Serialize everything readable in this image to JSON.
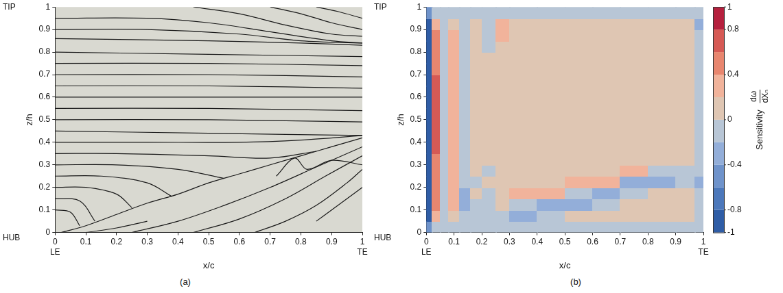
{
  "chart_data": [
    {
      "type": "line",
      "caption": "(a)",
      "x_label": "x/c",
      "y_label": "z/h",
      "xlim": [
        0,
        1
      ],
      "ylim": [
        0,
        1
      ],
      "xticks": [
        0,
        0.1,
        0.2,
        0.3,
        0.4,
        0.5,
        0.6,
        0.7,
        0.8,
        0.9,
        1
      ],
      "yticks": [
        0,
        0.1,
        0.2,
        0.3,
        0.4,
        0.5,
        0.6,
        0.7,
        0.8,
        0.9,
        1
      ],
      "grid": false,
      "color": "#1a1a1a",
      "annotations": [
        {
          "text": "TIP",
          "axis": "y",
          "value": 1
        },
        {
          "text": "HUB",
          "axis": "y",
          "value": 0
        },
        {
          "text": "LE",
          "axis": "x",
          "value": 0
        },
        {
          "text": "TE",
          "axis": "x",
          "value": 1
        }
      ],
      "series": [
        {
          "x": [
            0.02,
            0.1,
            0.2,
            0.3,
            0.4,
            0.5,
            0.6,
            0.7,
            0.8,
            0.9,
            1.0
          ],
          "y": [
            0,
            0.03,
            0.08,
            0.13,
            0.17,
            0.22,
            0.26,
            0.3,
            0.34,
            0.38,
            0.42
          ]
        },
        {
          "x": [
            0,
            0.5,
            1
          ],
          "y": [
            0.45,
            0.44,
            0.43
          ]
        },
        {
          "x": [
            0,
            0.5,
            1
          ],
          "y": [
            0.5,
            0.5,
            0.49
          ]
        },
        {
          "x": [
            0,
            0.5,
            1
          ],
          "y": [
            0.55,
            0.55,
            0.54
          ]
        },
        {
          "x": [
            0,
            0.5,
            1
          ],
          "y": [
            0.6,
            0.6,
            0.6
          ]
        },
        {
          "x": [
            0,
            0.5,
            1
          ],
          "y": [
            0.65,
            0.65,
            0.64
          ]
        },
        {
          "x": [
            0,
            0.5,
            1
          ],
          "y": [
            0.7,
            0.7,
            0.69
          ]
        },
        {
          "x": [
            0,
            0.5,
            1
          ],
          "y": [
            0.75,
            0.75,
            0.74
          ]
        },
        {
          "x": [
            0,
            0.5,
            1
          ],
          "y": [
            0.8,
            0.79,
            0.78
          ]
        },
        {
          "x": [
            0,
            0.5,
            0.8,
            1
          ],
          "y": [
            0.86,
            0.85,
            0.84,
            0.83
          ]
        },
        {
          "x": [
            0,
            0.3,
            0.6,
            0.8,
            1
          ],
          "y": [
            0.9,
            0.9,
            0.88,
            0.85,
            0.84
          ]
        },
        {
          "x": [
            0,
            0.3,
            0.5,
            0.7,
            0.9,
            1
          ],
          "y": [
            0.95,
            0.95,
            0.93,
            0.89,
            0.85,
            0.84
          ]
        },
        {
          "x": [
            0.45,
            0.6,
            0.75,
            0.9,
            1
          ],
          "y": [
            1,
            0.97,
            0.92,
            0.88,
            0.87
          ]
        },
        {
          "x": [
            0.7,
            0.8,
            0.9,
            1
          ],
          "y": [
            1,
            0.97,
            0.93,
            0.9
          ]
        },
        {
          "x": [
            0.85,
            0.92,
            1
          ],
          "y": [
            1,
            0.98,
            0.95
          ]
        },
        {
          "x": [
            0,
            0.3,
            0.6,
            0.8,
            1
          ],
          "y": [
            0.4,
            0.4,
            0.4,
            0.41,
            0.43
          ]
        },
        {
          "x": [
            0,
            0.2,
            0.5,
            0.7,
            0.85
          ],
          "y": [
            0.35,
            0.35,
            0.34,
            0.33,
            0.36
          ]
        },
        {
          "x": [
            0,
            0.2,
            0.4,
            0.55
          ],
          "y": [
            0.3,
            0.3,
            0.28,
            0.24
          ]
        },
        {
          "x": [
            0,
            0.15,
            0.3,
            0.38
          ],
          "y": [
            0.25,
            0.25,
            0.22,
            0.16
          ]
        },
        {
          "x": [
            0,
            0.1,
            0.2,
            0.25
          ],
          "y": [
            0.2,
            0.2,
            0.17,
            0.11
          ]
        },
        {
          "x": [
            0,
            0.08,
            0.13
          ],
          "y": [
            0.15,
            0.14,
            0.05
          ]
        },
        {
          "x": [
            0,
            0.05,
            0.08
          ],
          "y": [
            0.1,
            0.09,
            0.03
          ]
        },
        {
          "x": [
            0.1,
            0.2,
            0.3
          ],
          "y": [
            0,
            0.02,
            0.05
          ]
        },
        {
          "x": [
            0.25,
            0.4,
            0.55,
            0.7,
            0.85,
            1
          ],
          "y": [
            0,
            0.05,
            0.12,
            0.2,
            0.29,
            0.38
          ]
        },
        {
          "x": [
            0.45,
            0.6,
            0.75,
            0.88,
            1
          ],
          "y": [
            0,
            0.06,
            0.15,
            0.25,
            0.34
          ]
        },
        {
          "x": [
            0.65,
            0.75,
            0.85,
            0.95,
            1
          ],
          "y": [
            0,
            0.05,
            0.12,
            0.22,
            0.28
          ]
        },
        {
          "x": [
            0.72,
            0.78,
            0.82,
            0.9,
            1
          ],
          "y": [
            0.25,
            0.33,
            0.28,
            0.32,
            0.3
          ]
        },
        {
          "x": [
            0.85,
            0.9,
            0.95,
            1
          ],
          "y": [
            0.05,
            0.1,
            0.15,
            0.2
          ]
        }
      ]
    },
    {
      "type": "heatmap",
      "caption": "(b)",
      "x_label": "x/c",
      "y_label": "z/h",
      "xlim": [
        0,
        1
      ],
      "ylim": [
        0,
        1
      ],
      "xticks": [
        0,
        0.1,
        0.2,
        0.3,
        0.4,
        0.5,
        0.6,
        0.7,
        0.8,
        0.9,
        1
      ],
      "yticks": [
        0,
        0.1,
        0.2,
        0.3,
        0.4,
        0.5,
        0.6,
        0.7,
        0.8,
        0.9,
        1
      ],
      "grid": false,
      "annotations": [
        {
          "text": "TIP",
          "axis": "y",
          "value": 1
        },
        {
          "text": "HUB",
          "axis": "y",
          "value": 0
        },
        {
          "text": "LE",
          "axis": "x",
          "value": 0
        },
        {
          "text": "TE",
          "axis": "x",
          "value": 1
        }
      ],
      "cells": {
        "x_edges": [
          0,
          0.02,
          0.05,
          0.08,
          0.12,
          0.16,
          0.2,
          0.25,
          0.3,
          0.4,
          0.5,
          0.6,
          0.7,
          0.8,
          0.9,
          0.97,
          1
        ],
        "y_edges": [
          0,
          0.05,
          0.1,
          0.15,
          0.2,
          0.25,
          0.3,
          0.35,
          0.4,
          0.45,
          0.5,
          0.55,
          0.6,
          0.65,
          0.7,
          0.75,
          0.8,
          0.85,
          0.9,
          0.95,
          1
        ],
        "values": [
          [
            -0.5,
            -0.1,
            -0.1,
            -0.1,
            -0.1,
            -0.1,
            -0.1,
            -0.1,
            -0.1,
            -0.1,
            -0.1,
            -0.1,
            -0.1,
            -0.1,
            -0.1,
            -0.1
          ],
          [
            -0.9,
            0.3,
            -0.1,
            0.1,
            -0.2,
            -0.1,
            -0.1,
            -0.1,
            -0.3,
            -0.1,
            0.1,
            0.1,
            0.1,
            0.1,
            0.1,
            -0.1
          ],
          [
            -0.9,
            0.4,
            -0.15,
            0.2,
            -0.4,
            -0.2,
            -0.1,
            0.1,
            -0.1,
            -0.35,
            -0.4,
            -0.1,
            0.1,
            0.1,
            0.1,
            -0.1
          ],
          [
            -0.9,
            0.4,
            -0.15,
            0.2,
            -0.4,
            0.1,
            -0.2,
            0.1,
            0.25,
            0.3,
            -0.1,
            -0.4,
            -0.1,
            0.1,
            0.1,
            -0.1
          ],
          [
            -0.9,
            0.5,
            -0.15,
            0.25,
            -0.1,
            -0.2,
            0.1,
            0.1,
            0.1,
            0.1,
            0.3,
            0.3,
            -0.4,
            -0.35,
            -0.1,
            -0.4
          ],
          [
            -0.9,
            0.5,
            -0.15,
            0.3,
            -0.1,
            0.1,
            -0.1,
            0.1,
            0.1,
            0.1,
            0.1,
            0.1,
            0.2,
            -0.1,
            -0.2,
            -0.1
          ],
          [
            -0.9,
            0.55,
            -0.15,
            0.3,
            -0.1,
            0.1,
            0.1,
            0.1,
            0.1,
            0.1,
            0.1,
            0.1,
            0.1,
            0.1,
            0.1,
            -0.1
          ],
          [
            -0.9,
            0.6,
            -0.15,
            0.3,
            -0.1,
            0.1,
            0.1,
            0.1,
            0.1,
            0.1,
            0.1,
            0.1,
            0.1,
            0.1,
            0.1,
            -0.1
          ],
          [
            -0.9,
            0.6,
            -0.15,
            0.3,
            -0.1,
            0.1,
            0.1,
            0.1,
            0.1,
            0.1,
            0.1,
            0.1,
            0.1,
            0.1,
            0.1,
            -0.1
          ],
          [
            -0.9,
            0.6,
            -0.15,
            0.3,
            -0.1,
            0.1,
            0.1,
            0.1,
            0.1,
            0.1,
            0.1,
            0.1,
            0.1,
            0.1,
            0.1,
            -0.1
          ],
          [
            -0.9,
            0.6,
            -0.15,
            0.3,
            -0.1,
            0.1,
            0.1,
            0.1,
            0.1,
            0.1,
            0.1,
            0.1,
            0.1,
            0.1,
            0.1,
            -0.1
          ],
          [
            -0.9,
            0.6,
            -0.15,
            0.3,
            -0.1,
            0.1,
            0.1,
            0.1,
            0.1,
            0.1,
            0.1,
            0.1,
            0.1,
            0.1,
            0.1,
            -0.1
          ],
          [
            -0.9,
            0.6,
            -0.15,
            0.3,
            -0.1,
            0.1,
            0.1,
            0.1,
            0.1,
            0.1,
            0.1,
            0.1,
            0.1,
            0.1,
            0.1,
            -0.1
          ],
          [
            -0.9,
            0.6,
            -0.15,
            0.3,
            -0.1,
            0.1,
            0.1,
            0.1,
            0.1,
            0.1,
            0.1,
            0.1,
            0.1,
            0.1,
            0.1,
            -0.1
          ],
          [
            -0.9,
            0.55,
            -0.15,
            0.3,
            -0.1,
            0.1,
            0.1,
            0.1,
            0.1,
            0.1,
            0.1,
            0.1,
            0.1,
            0.1,
            0.1,
            -0.1
          ],
          [
            -0.9,
            0.5,
            -0.15,
            0.3,
            -0.1,
            0.1,
            0.1,
            0.1,
            0.1,
            0.1,
            0.1,
            0.1,
            0.1,
            0.1,
            0.1,
            -0.1
          ],
          [
            -0.9,
            0.5,
            -0.15,
            0.3,
            -0.1,
            0.1,
            -0.15,
            0.1,
            0.1,
            0.1,
            0.1,
            0.1,
            0.1,
            0.1,
            0.1,
            -0.1
          ],
          [
            -0.9,
            0.4,
            -0.15,
            0.25,
            -0.1,
            0.1,
            -0.15,
            0.3,
            0.1,
            0.1,
            0.1,
            0.1,
            0.1,
            0.1,
            0.1,
            -0.1
          ],
          [
            -0.9,
            0.3,
            -0.15,
            0.1,
            -0.1,
            0.1,
            -0.15,
            0.3,
            0.1,
            0.1,
            0.1,
            0.1,
            0.1,
            0.1,
            0.1,
            -0.4
          ],
          [
            -0.5,
            -0.1,
            -0.1,
            -0.1,
            -0.1,
            -0.1,
            -0.1,
            -0.1,
            -0.1,
            -0.1,
            -0.1,
            -0.1,
            -0.1,
            -0.1,
            -0.1,
            -0.1
          ]
        ]
      },
      "colorbar": {
        "label": "Sensitivity",
        "symbol_numerator": "dω",
        "symbol_denominator": "dXₙ",
        "range": [
          -1,
          1
        ],
        "ticks": [
          -1,
          -0.8,
          -0.4,
          0,
          0.4,
          0.8,
          1
        ],
        "levels": [
          -1,
          -0.8,
          -0.6,
          -0.4,
          -0.2,
          0,
          0.2,
          0.4,
          0.6,
          0.8,
          1
        ],
        "colors": [
          "#2f5da6",
          "#4c78bb",
          "#6f93cb",
          "#93aed9",
          "#b8c6d6",
          "#dfc6b3",
          "#f1b39b",
          "#e8866f",
          "#d65a55",
          "#b5203e"
        ]
      }
    }
  ]
}
